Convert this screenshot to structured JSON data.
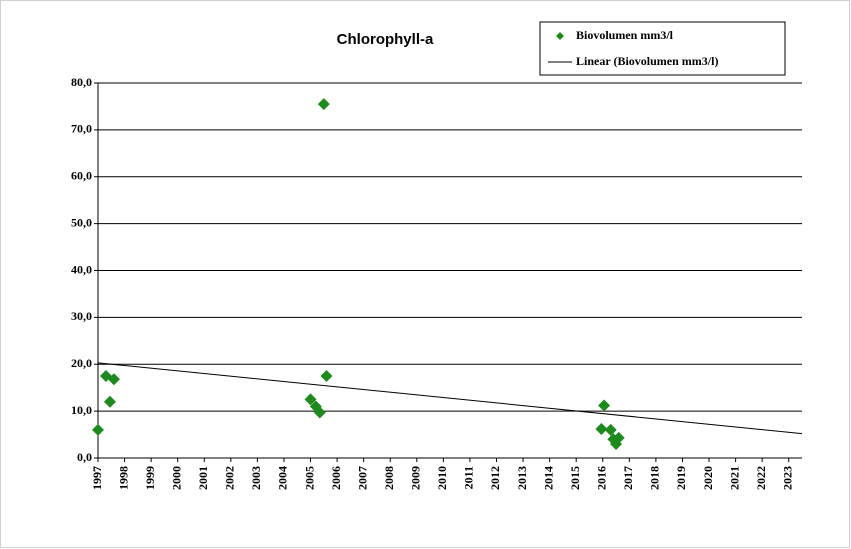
{
  "chart_data": {
    "type": "scatter",
    "title": "Chlorophyll-a",
    "series": [
      {
        "name": "Biovolumen mm3/l",
        "color": "#1e8a1e",
        "kind": "marker",
        "x": [
          1997.0,
          1997.3,
          1997.45,
          1997.6,
          2005.0,
          2005.2,
          2005.35,
          2005.5,
          2005.6,
          2015.95,
          2016.05,
          2016.3,
          2016.4,
          2016.5,
          2016.6
        ],
        "values": [
          6.0,
          17.5,
          12.0,
          16.8,
          12.5,
          11.0,
          9.7,
          75.5,
          17.5,
          6.2,
          11.2,
          6.0,
          4.0,
          3.0,
          4.3
        ]
      },
      {
        "name": "Linear (Biovolumen mm3/l)",
        "color": "#000000",
        "kind": "line",
        "x": [
          1997.0,
          2023.5
        ],
        "values": [
          20.3,
          5.2
        ]
      }
    ],
    "xlim": [
      1997,
      2023.5
    ],
    "xticks": [
      1997,
      1998,
      1999,
      2000,
      2001,
      2002,
      2003,
      2004,
      2005,
      2006,
      2007,
      2008,
      2009,
      2010,
      2011,
      2012,
      2013,
      2014,
      2015,
      2016,
      2017,
      2018,
      2019,
      2020,
      2021,
      2022,
      2023
    ],
    "ylim": [
      0,
      80
    ],
    "yticks": [
      {
        "value": 0,
        "label": "0,0"
      },
      {
        "value": 10,
        "label": "10,0"
      },
      {
        "value": 20,
        "label": "20,0"
      },
      {
        "value": 30,
        "label": "30,0"
      },
      {
        "value": 40,
        "label": "40,0"
      },
      {
        "value": 50,
        "label": "50,0"
      },
      {
        "value": 60,
        "label": "60,0"
      },
      {
        "value": 70,
        "label": "70,0"
      },
      {
        "value": 80,
        "label": "80,0"
      }
    ],
    "grid": true,
    "legend": "top-right"
  }
}
